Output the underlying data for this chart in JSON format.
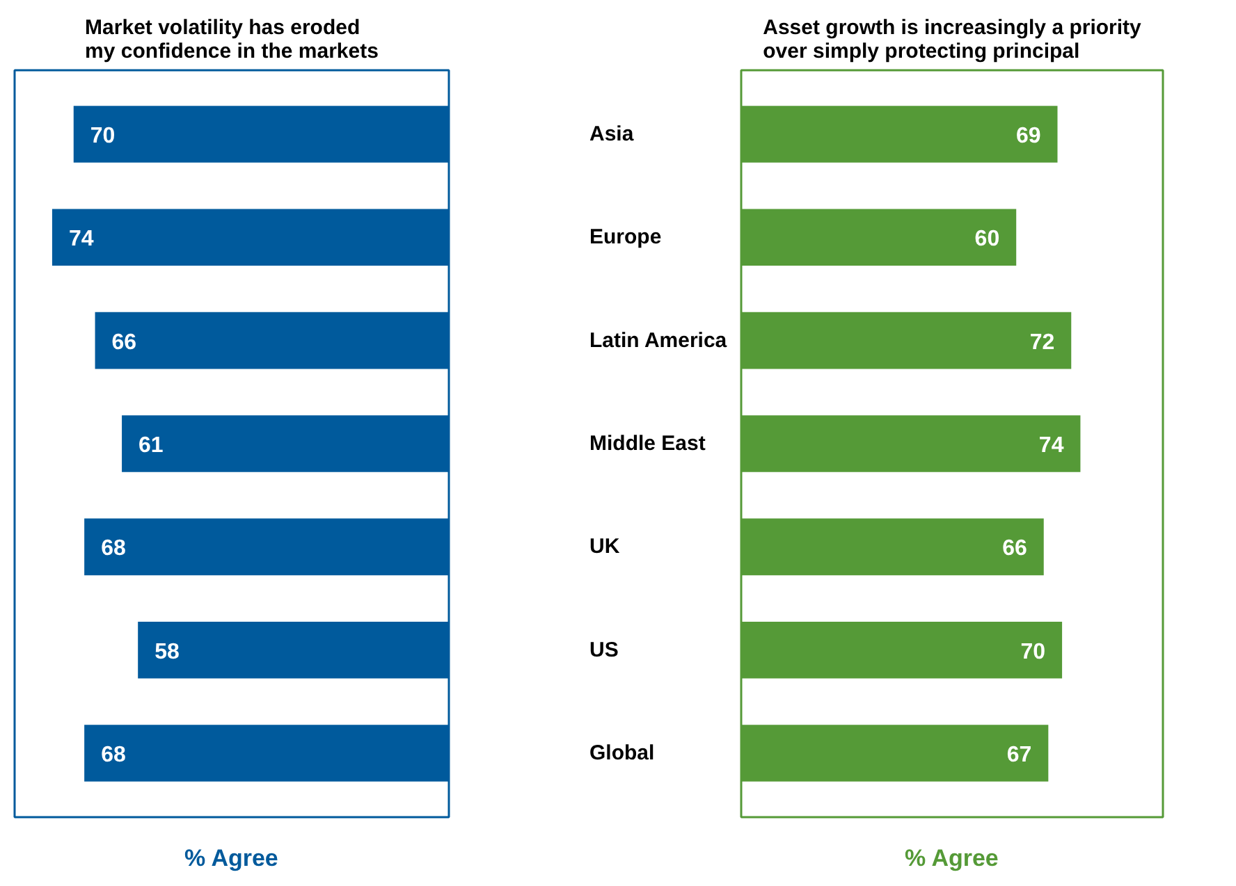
{
  "chart_data": [
    {
      "type": "bar",
      "orientation": "horizontal",
      "title": "Market volatility has eroded\nmy confidence in the markets",
      "xlabel": "% Agree",
      "categories": [
        "Asia",
        "Europe",
        "Latin America",
        "Middle East",
        "UK",
        "US",
        "Global"
      ],
      "values": [
        70,
        74,
        66,
        61,
        68,
        58,
        68
      ],
      "color": "#005a9c",
      "data_labels": true,
      "xlim": [
        81,
        0
      ],
      "tick_labels": "y",
      "grid": false
    },
    {
      "type": "bar",
      "orientation": "horizontal",
      "title": "Asset growth is increasingly a priority\nover simply protecting principal",
      "xlabel": "% Agree",
      "values": [
        69,
        60,
        72,
        74,
        66,
        70,
        67
      ],
      "color": "#559a37",
      "data_labels": true,
      "xlim": [
        0,
        92
      ],
      "tick_labels": false,
      "grid": false
    }
  ]
}
